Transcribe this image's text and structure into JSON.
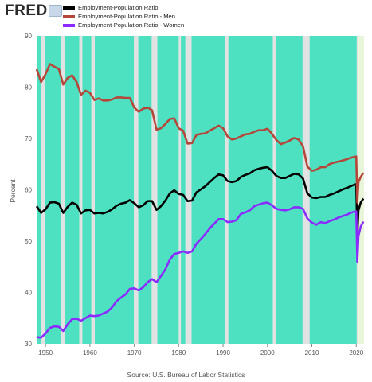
{
  "header": {
    "logo": "FRED",
    "legend": [
      {
        "label": "Employment-Population Ratio",
        "color": "#000000"
      },
      {
        "label": "Employment-Population Ratio - Men",
        "color": "#b5473a"
      },
      {
        "label": "Employment-Population Ratio - Women",
        "color": "#8b2bff"
      }
    ]
  },
  "footer": {
    "source": "Source: U.S. Bureau of Labor Statistics"
  },
  "colors": {
    "expansion": "#4de1c1",
    "recession": "#e2e2e2",
    "latest": "#e9f5d9"
  },
  "chart_data": {
    "type": "line",
    "ylabel": "Percent",
    "xlim": [
      1948,
      2021.75
    ],
    "ylim": [
      30,
      90
    ],
    "xticks": [
      1950,
      1960,
      1970,
      1980,
      1990,
      2000,
      2010,
      2020
    ],
    "yticks": [
      30,
      40,
      50,
      60,
      70,
      80,
      90
    ],
    "grid": false,
    "legend_position": "top-left",
    "recessions": [
      [
        1948.9,
        1949.8
      ],
      [
        1953.5,
        1954.4
      ],
      [
        1957.6,
        1958.3
      ],
      [
        1960.3,
        1961.1
      ],
      [
        1969.9,
        1970.9
      ],
      [
        1973.9,
        1975.2
      ],
      [
        1980.0,
        1980.5
      ],
      [
        1981.5,
        1982.9
      ],
      [
        1990.5,
        1991.2
      ],
      [
        2001.2,
        2001.9
      ],
      [
        2007.9,
        2009.5
      ],
      [
        2020.1,
        2020.4
      ]
    ],
    "series": [
      {
        "name": "Employment-Population Ratio",
        "color": "#000000",
        "x": [
          1948,
          1949,
          1950,
          1951,
          1952,
          1953,
          1954,
          1955,
          1956,
          1957,
          1958,
          1959,
          1960,
          1961,
          1962,
          1963,
          1964,
          1965,
          1966,
          1967,
          1968,
          1969,
          1970,
          1971,
          1972,
          1973,
          1974,
          1975,
          1976,
          1977,
          1978,
          1979,
          1980,
          1981,
          1982,
          1983,
          1984,
          1985,
          1986,
          1987,
          1988,
          1989,
          1990,
          1991,
          1992,
          1993,
          1994,
          1995,
          1996,
          1997,
          1998,
          1999,
          2000,
          2001,
          2002,
          2003,
          2004,
          2005,
          2006,
          2007,
          2008,
          2009,
          2010,
          2011,
          2012,
          2013,
          2014,
          2015,
          2016,
          2017,
          2018,
          2019,
          2020.0,
          2020.25,
          2020.5,
          2021.0,
          2021.6
        ],
        "y": [
          56.8,
          55.5,
          56.2,
          57.5,
          57.6,
          57.3,
          55.5,
          56.7,
          57.5,
          57.1,
          55.4,
          56.0,
          56.1,
          55.4,
          55.5,
          55.4,
          55.7,
          56.2,
          56.9,
          57.3,
          57.5,
          58.0,
          57.4,
          56.6,
          57.0,
          57.8,
          57.8,
          56.1,
          56.8,
          57.9,
          59.3,
          59.9,
          59.2,
          59.0,
          57.8,
          57.9,
          59.5,
          60.1,
          60.7,
          61.5,
          62.3,
          63.0,
          62.8,
          61.7,
          61.5,
          61.7,
          62.5,
          62.9,
          63.2,
          63.8,
          64.1,
          64.3,
          64.4,
          63.7,
          62.7,
          62.3,
          62.3,
          62.7,
          63.1,
          63.0,
          62.2,
          59.3,
          58.5,
          58.4,
          58.6,
          58.6,
          59.0,
          59.3,
          59.7,
          60.1,
          60.4,
          60.8,
          61.1,
          51.3,
          56.0,
          57.5,
          58.3
        ]
      },
      {
        "name": "Employment-Population Ratio - Men",
        "color": "#b5473a",
        "x": [
          1948,
          1949,
          1950,
          1951,
          1952,
          1953,
          1954,
          1955,
          1956,
          1957,
          1958,
          1959,
          1960,
          1961,
          1962,
          1963,
          1964,
          1965,
          1966,
          1967,
          1968,
          1969,
          1970,
          1971,
          1972,
          1973,
          1974,
          1975,
          1976,
          1977,
          1978,
          1979,
          1980,
          1981,
          1982,
          1983,
          1984,
          1985,
          1986,
          1987,
          1988,
          1989,
          1990,
          1991,
          1992,
          1993,
          1994,
          1995,
          1996,
          1997,
          1998,
          1999,
          2000,
          2001,
          2002,
          2003,
          2004,
          2005,
          2006,
          2007,
          2008,
          2009,
          2010,
          2011,
          2012,
          2013,
          2014,
          2015,
          2016,
          2017,
          2018,
          2019,
          2020.0,
          2020.25,
          2020.5,
          2021.0,
          2021.6
        ],
        "y": [
          83.5,
          81.0,
          82.5,
          84.5,
          84.0,
          83.5,
          80.5,
          81.8,
          82.3,
          81.0,
          78.5,
          79.3,
          78.9,
          77.5,
          77.8,
          77.4,
          77.4,
          77.6,
          78.0,
          78.0,
          77.9,
          77.9,
          76.0,
          75.2,
          75.8,
          76.0,
          75.5,
          71.7,
          72.0,
          72.8,
          73.8,
          73.9,
          72.0,
          71.5,
          69.0,
          69.1,
          70.7,
          70.9,
          71.0,
          71.5,
          72.0,
          72.5,
          72.0,
          70.4,
          69.8,
          70.0,
          70.4,
          70.8,
          70.9,
          71.3,
          71.6,
          71.6,
          71.9,
          70.9,
          69.7,
          68.9,
          69.2,
          69.6,
          70.1,
          69.8,
          68.5,
          64.5,
          63.7,
          63.9,
          64.4,
          64.4,
          65.0,
          65.3,
          65.5,
          65.7,
          66.0,
          66.3,
          66.5,
          57.5,
          61.5,
          62.5,
          63.3
        ]
      },
      {
        "name": "Employment-Population Ratio - Women",
        "color": "#8b2bff",
        "x": [
          1948,
          1949,
          1950,
          1951,
          1952,
          1953,
          1954,
          1955,
          1956,
          1957,
          1958,
          1959,
          1960,
          1961,
          1962,
          1963,
          1964,
          1965,
          1966,
          1967,
          1968,
          1969,
          1970,
          1971,
          1972,
          1973,
          1974,
          1975,
          1976,
          1977,
          1978,
          1979,
          1980,
          1981,
          1982,
          1983,
          1984,
          1985,
          1986,
          1987,
          1988,
          1989,
          1990,
          1991,
          1992,
          1993,
          1994,
          1995,
          1996,
          1997,
          1998,
          1999,
          2000,
          2001,
          2002,
          2003,
          2004,
          2005,
          2006,
          2007,
          2008,
          2009,
          2010,
          2011,
          2012,
          2013,
          2014,
          2015,
          2016,
          2017,
          2018,
          2019,
          2020.0,
          2020.25,
          2020.5,
          2021.0,
          2021.6
        ],
        "y": [
          31.3,
          31.2,
          32.0,
          33.1,
          33.4,
          33.3,
          32.5,
          33.8,
          34.8,
          34.9,
          34.5,
          35.0,
          35.5,
          35.4,
          35.5,
          35.9,
          36.3,
          37.1,
          38.3,
          39.0,
          39.6,
          40.7,
          40.8,
          40.4,
          41.0,
          42.0,
          42.6,
          42.0,
          43.2,
          44.5,
          46.4,
          47.5,
          47.7,
          48.0,
          47.7,
          48.0,
          49.5,
          50.4,
          51.4,
          52.5,
          53.4,
          54.3,
          54.3,
          53.7,
          53.8,
          54.1,
          55.3,
          55.6,
          56.0,
          56.8,
          57.1,
          57.4,
          57.5,
          57.0,
          56.3,
          56.1,
          56.0,
          56.2,
          56.6,
          56.6,
          56.3,
          54.4,
          53.6,
          53.2,
          53.7,
          53.5,
          53.9,
          54.2,
          54.6,
          54.9,
          55.2,
          55.6,
          55.8,
          46.0,
          51.0,
          52.8,
          53.8
        ]
      }
    ]
  }
}
